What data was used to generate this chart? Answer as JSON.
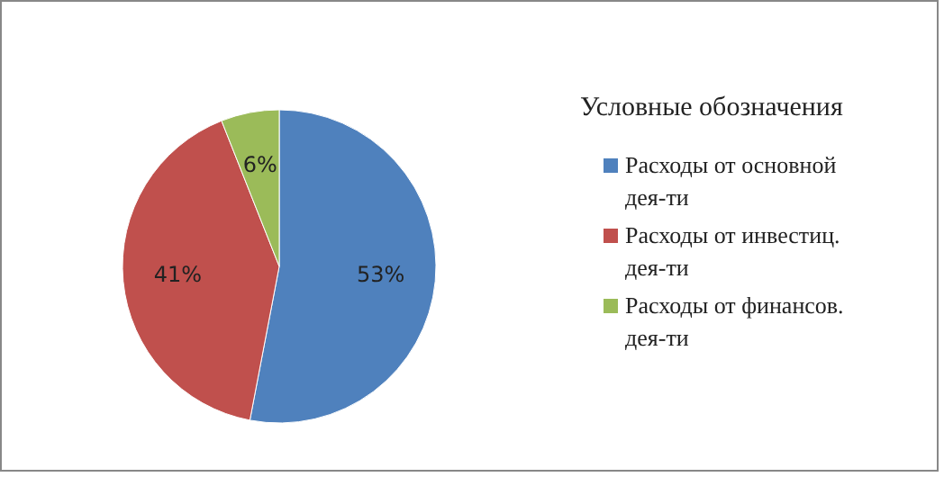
{
  "chart_data": {
    "type": "pie",
    "legend_title": "Условные обозначения",
    "legend": "right",
    "categories": [
      "Расходы от основной дея-ти",
      "Расходы от инвестиц. дея-ти",
      "Расходы от финансов. дея-ти"
    ],
    "values": [
      53,
      41,
      6
    ],
    "colors": [
      "#4f81bd",
      "#c0504d",
      "#9bbb59"
    ],
    "value_labels": [
      "53%",
      "41%",
      "6%"
    ]
  }
}
